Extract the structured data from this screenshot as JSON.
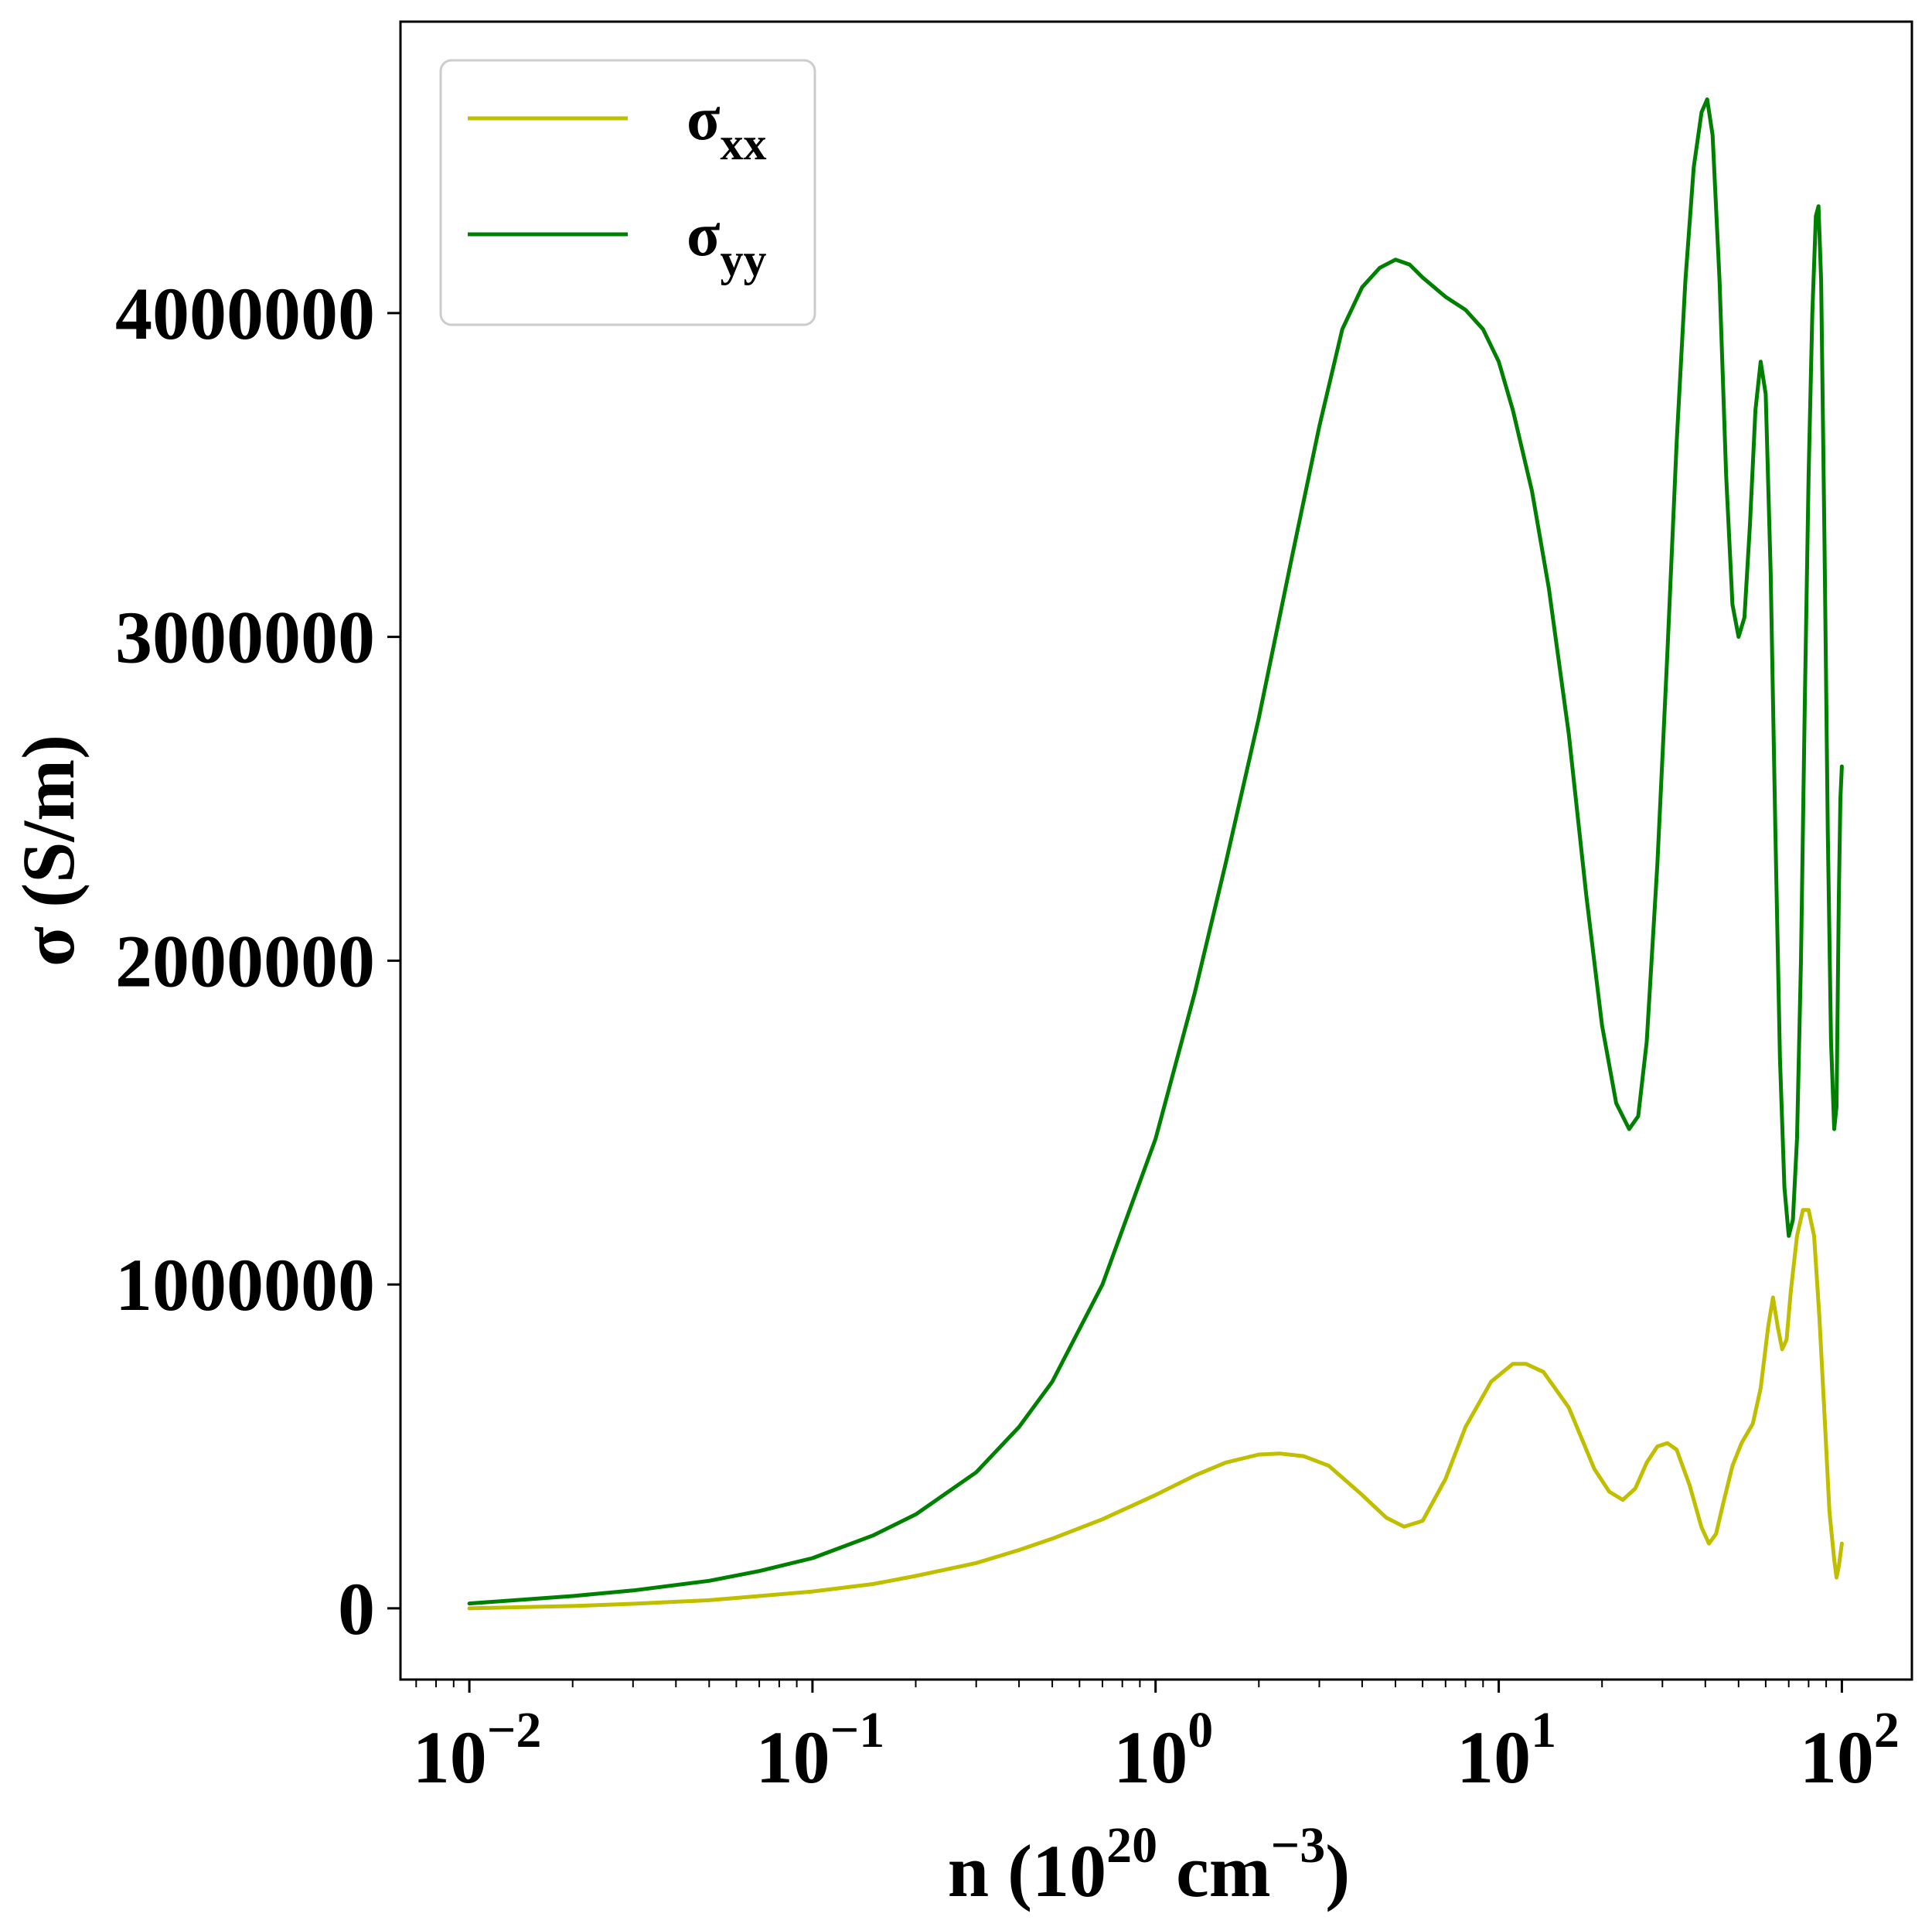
{
  "chart_data": {
    "type": "line",
    "xlabel": {
      "base": "n (10",
      "exp1": "20",
      "mid": " cm",
      "exp2": "−3",
      "tail": ")"
    },
    "ylabel": "σ (S/m)",
    "xscale": "log",
    "xlim": [
      0.0063,
      160
    ],
    "ylim": [
      -220000,
      4900000
    ],
    "x_ticks": [
      {
        "value": 0.01,
        "base": "10",
        "exp": "−2"
      },
      {
        "value": 0.1,
        "base": "10",
        "exp": "−1"
      },
      {
        "value": 1,
        "base": "10",
        "exp": "0"
      },
      {
        "value": 10,
        "base": "10",
        "exp": "1"
      },
      {
        "value": 100,
        "base": "10",
        "exp": "2"
      }
    ],
    "y_ticks": [
      {
        "value": 0,
        "label": "0"
      },
      {
        "value": 1000000,
        "label": "1000000"
      },
      {
        "value": 2000000,
        "label": "2000000"
      },
      {
        "value": 3000000,
        "label": "3000000"
      },
      {
        "value": 4000000,
        "label": "4000000"
      }
    ],
    "grid": false,
    "legend_position": "top-left",
    "series": [
      {
        "name": "xx",
        "color": "#bfbf00",
        "points": [
          [
            0.01,
            0
          ],
          [
            0.02,
            7000
          ],
          [
            0.03,
            14000
          ],
          [
            0.05,
            25000
          ],
          [
            0.07,
            38000
          ],
          [
            0.1,
            52000
          ],
          [
            0.15,
            75000
          ],
          [
            0.2,
            100000
          ],
          [
            0.3,
            140000
          ],
          [
            0.4,
            180000
          ],
          [
            0.5,
            215000
          ],
          [
            0.7,
            275000
          ],
          [
            1.0,
            350000
          ],
          [
            1.3,
            410000
          ],
          [
            1.6,
            450000
          ],
          [
            2.0,
            475000
          ],
          [
            2.3,
            478000
          ],
          [
            2.7,
            470000
          ],
          [
            3.2,
            440000
          ],
          [
            4.0,
            350000
          ],
          [
            4.7,
            280000
          ],
          [
            5.3,
            252000
          ],
          [
            6.0,
            270000
          ],
          [
            7.0,
            400000
          ],
          [
            8.0,
            560000
          ],
          [
            9.5,
            700000
          ],
          [
            11.0,
            755000
          ],
          [
            12.0,
            755000
          ],
          [
            13.5,
            730000
          ],
          [
            16.0,
            620000
          ],
          [
            19.0,
            430000
          ],
          [
            21.0,
            360000
          ],
          [
            23.0,
            335000
          ],
          [
            25.0,
            370000
          ],
          [
            27.0,
            450000
          ],
          [
            29.0,
            500000
          ],
          [
            31.0,
            510000
          ],
          [
            33.0,
            490000
          ],
          [
            36.0,
            380000
          ],
          [
            39.0,
            250000
          ],
          [
            41.0,
            200000
          ],
          [
            43.0,
            230000
          ],
          [
            45.0,
            320000
          ],
          [
            48.0,
            440000
          ],
          [
            51.0,
            510000
          ],
          [
            55.0,
            570000
          ],
          [
            58.0,
            680000
          ],
          [
            61.0,
            870000
          ],
          [
            63.0,
            960000
          ],
          [
            65.0,
            870000
          ],
          [
            67.0,
            800000
          ],
          [
            69.0,
            830000
          ],
          [
            71.0,
            980000
          ],
          [
            74.0,
            1150000
          ],
          [
            77.0,
            1230000
          ],
          [
            80.0,
            1230000
          ],
          [
            83.0,
            1150000
          ],
          [
            86.0,
            900000
          ],
          [
            89.0,
            600000
          ],
          [
            92.0,
            300000
          ],
          [
            95.0,
            150000
          ],
          [
            96.5,
            95000
          ],
          [
            98.0,
            130000
          ],
          [
            100.0,
            200000
          ]
        ]
      },
      {
        "name": "yy",
        "color": "#008000",
        "points": [
          [
            0.01,
            15000
          ],
          [
            0.02,
            38000
          ],
          [
            0.03,
            55000
          ],
          [
            0.05,
            85000
          ],
          [
            0.07,
            115000
          ],
          [
            0.1,
            155000
          ],
          [
            0.15,
            225000
          ],
          [
            0.2,
            290000
          ],
          [
            0.3,
            420000
          ],
          [
            0.4,
            560000
          ],
          [
            0.5,
            700000
          ],
          [
            0.7,
            1000000
          ],
          [
            1.0,
            1450000
          ],
          [
            1.3,
            1900000
          ],
          [
            1.6,
            2300000
          ],
          [
            2.0,
            2750000
          ],
          [
            2.5,
            3250000
          ],
          [
            3.0,
            3650000
          ],
          [
            3.5,
            3950000
          ],
          [
            4.0,
            4080000
          ],
          [
            4.5,
            4140000
          ],
          [
            5.0,
            4165000
          ],
          [
            5.5,
            4150000
          ],
          [
            6.0,
            4110000
          ],
          [
            7.0,
            4050000
          ],
          [
            8.0,
            4010000
          ],
          [
            9.0,
            3950000
          ],
          [
            10.0,
            3850000
          ],
          [
            11.0,
            3700000
          ],
          [
            12.5,
            3450000
          ],
          [
            14.0,
            3150000
          ],
          [
            16.0,
            2700000
          ],
          [
            18.0,
            2200000
          ],
          [
            20.0,
            1800000
          ],
          [
            22.0,
            1560000
          ],
          [
            24.0,
            1480000
          ],
          [
            25.5,
            1520000
          ],
          [
            27.0,
            1750000
          ],
          [
            29.0,
            2300000
          ],
          [
            31.0,
            2950000
          ],
          [
            33.0,
            3600000
          ],
          [
            35.0,
            4100000
          ],
          [
            37.0,
            4450000
          ],
          [
            39.0,
            4620000
          ],
          [
            40.5,
            4660000
          ],
          [
            42.0,
            4550000
          ],
          [
            44.0,
            4100000
          ],
          [
            46.0,
            3500000
          ],
          [
            48.0,
            3100000
          ],
          [
            50.0,
            3000000
          ],
          [
            52.0,
            3060000
          ],
          [
            54.0,
            3350000
          ],
          [
            56.0,
            3700000
          ],
          [
            58.0,
            3850000
          ],
          [
            60.0,
            3750000
          ],
          [
            62.0,
            3200000
          ],
          [
            64.0,
            2400000
          ],
          [
            66.0,
            1700000
          ],
          [
            68.0,
            1300000
          ],
          [
            70.0,
            1150000
          ],
          [
            72.0,
            1200000
          ],
          [
            74.0,
            1450000
          ],
          [
            76.0,
            2000000
          ],
          [
            78.0,
            2800000
          ],
          [
            80.0,
            3500000
          ],
          [
            82.0,
            4000000
          ],
          [
            84.0,
            4300000
          ],
          [
            85.5,
            4330000
          ],
          [
            87.0,
            4100000
          ],
          [
            89.0,
            3300000
          ],
          [
            91.0,
            2400000
          ],
          [
            93.0,
            1750000
          ],
          [
            95.0,
            1480000
          ],
          [
            96.5,
            1550000
          ],
          [
            98.0,
            2200000
          ],
          [
            99.0,
            2500000
          ],
          [
            100.0,
            2600000
          ]
        ]
      }
    ]
  }
}
